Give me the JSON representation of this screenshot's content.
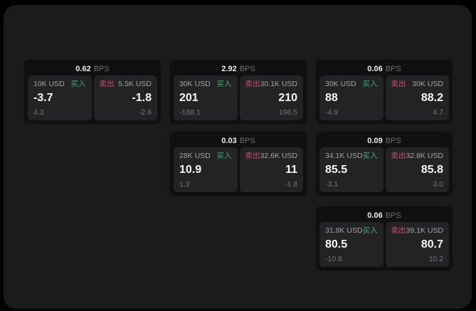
{
  "labels": {
    "bps": "BPS",
    "buy": "买入",
    "sell": "卖出"
  },
  "colors": {
    "page_background": "#000000",
    "window_background": "#1b1b1c",
    "card_background": "#101011",
    "panel_background": "#232325",
    "buy_green": "#3eae6d",
    "sell_red": "#cc4f68"
  },
  "cards": [
    {
      "spread": "0.62",
      "unit": "BPS",
      "buy": {
        "amount": "10K USD",
        "label": "买入",
        "price": "-3.7",
        "change": "4.3"
      },
      "sell": {
        "label": "卖出",
        "amount": "5.5K USD",
        "price": "-1.8",
        "change": "-2.6"
      }
    },
    {
      "spread": "2.92",
      "unit": "BPS",
      "buy": {
        "amount": "30K USD",
        "label": "买入",
        "price": "201",
        "change": "-188.1"
      },
      "sell": {
        "label": "卖出",
        "amount": "30.1K USD",
        "price": "210",
        "change": "196.5"
      }
    },
    {
      "spread": "0.06",
      "unit": "BPS",
      "buy": {
        "amount": "30K USD",
        "label": "买入",
        "price": "88",
        "change": "-4.9"
      },
      "sell": {
        "label": "卖出",
        "amount": "30K USD",
        "price": "88.2",
        "change": "4.7"
      }
    },
    {
      "spread": "0.03",
      "unit": "BPS",
      "buy": {
        "amount": "28K USD",
        "label": "买入",
        "price": "10.9",
        "change": "1.3"
      },
      "sell": {
        "label": "卖出",
        "amount": "32.6K USD",
        "price": "11",
        "change": "-1.8"
      }
    },
    {
      "spread": "0.09",
      "unit": "BPS",
      "buy": {
        "amount": "34.1K USD",
        "label": "买入",
        "price": "85.5",
        "change": "-3.1"
      },
      "sell": {
        "label": "卖出",
        "amount": "32.8K USD",
        "price": "85.8",
        "change": "3.0"
      }
    },
    {
      "spread": "0.06",
      "unit": "BPS",
      "buy": {
        "amount": "31.8K USD",
        "label": "买入",
        "price": "80.5",
        "change": "-10.8"
      },
      "sell": {
        "label": "卖出",
        "amount": "39.1K USD",
        "price": "80.7",
        "change": "10.2"
      }
    }
  ]
}
